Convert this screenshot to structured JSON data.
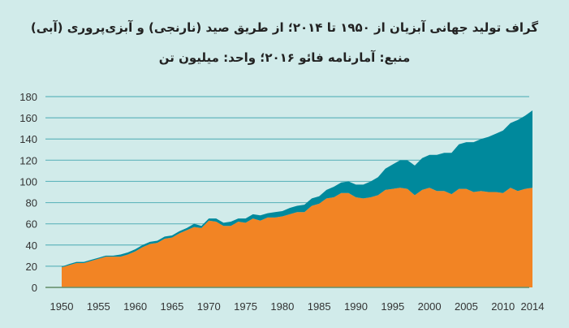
{
  "header": {
    "title": "گراف تولید جهانی آبزیان از ۱۹۵۰ تا ۲۰۱۴؛ از طریق صید (نارنجی) و آبزی‌پروری (آبی)",
    "subtitle": "منبع: آمارنامه فائو ۲۰۱۶؛ واحد: میلیون تن"
  },
  "colors": {
    "background": "#d1ebea",
    "capture": "#f28424",
    "aquaculture": "#00899c",
    "grid": "#62b6bd"
  },
  "chart_data": {
    "type": "area",
    "stacked": true,
    "title": "گراف تولید جهانی آبزیان از ۱۹۵۰ تا ۲۰۱۴؛ از طریق صید (نارنجی) و آبزی‌پروری (آبی)",
    "xlim": [
      1950,
      2014
    ],
    "ylim": [
      0,
      180
    ],
    "grid": true,
    "yticks": [
      0,
      20,
      40,
      60,
      80,
      100,
      120,
      140,
      160,
      180
    ],
    "xticks": [
      1950,
      1955,
      1960,
      1965,
      1970,
      1975,
      1980,
      1985,
      1990,
      1995,
      2000,
      2005,
      2010,
      2014
    ],
    "x": [
      1950,
      1951,
      1952,
      1953,
      1954,
      1955,
      1956,
      1957,
      1958,
      1959,
      1960,
      1961,
      1962,
      1963,
      1964,
      1965,
      1966,
      1967,
      1968,
      1969,
      1970,
      1971,
      1972,
      1973,
      1974,
      1975,
      1976,
      1977,
      1978,
      1979,
      1980,
      1981,
      1982,
      1983,
      1984,
      1985,
      1986,
      1987,
      1988,
      1989,
      1990,
      1991,
      1992,
      1993,
      1994,
      1995,
      1996,
      1997,
      1998,
      1999,
      2000,
      2001,
      2002,
      2003,
      2004,
      2005,
      2006,
      2007,
      2008,
      2009,
      2010,
      2011,
      2012,
      2013,
      2014
    ],
    "series": [
      {
        "key": "capture",
        "color": "#f28424",
        "values": [
          19,
          21,
          23,
          23,
          25,
          27,
          29,
          29,
          29,
          31,
          34,
          38,
          41,
          42,
          46,
          47,
          51,
          54,
          57,
          56,
          63,
          62,
          58,
          58,
          62,
          61,
          65,
          63,
          66,
          66,
          67,
          69,
          71,
          71,
          77,
          79,
          84,
          85,
          89,
          89,
          85,
          84,
          85,
          87,
          92,
          93,
          94,
          93,
          87,
          92,
          94,
          91,
          91,
          88,
          93,
          93,
          90,
          91,
          90,
          90,
          89,
          94,
          91,
          93,
          94
        ]
      },
      {
        "key": "aquaculture",
        "color": "#00899c",
        "values": [
          0.5,
          1,
          1,
          1,
          1,
          1,
          1,
          1,
          2,
          2,
          2,
          2,
          2,
          2,
          2,
          2,
          2,
          2,
          3,
          2,
          2,
          3,
          3,
          4,
          3,
          4,
          4,
          5,
          4,
          5,
          5,
          6,
          6,
          7,
          7,
          7,
          8,
          10,
          10,
          11,
          12,
          13,
          15,
          17,
          20,
          23,
          26,
          27,
          28,
          30,
          31,
          34,
          36,
          39,
          42,
          44,
          47,
          49,
          52,
          55,
          59,
          61,
          67,
          69,
          73
        ]
      }
    ]
  }
}
